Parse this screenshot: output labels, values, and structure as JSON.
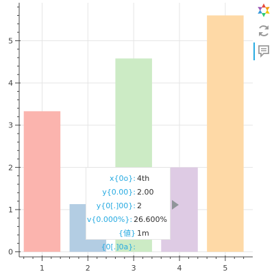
{
  "chart_data": {
    "type": "bar",
    "categories": [
      "1",
      "2",
      "3",
      "4",
      "5"
    ],
    "values": [
      3.33,
      1.13,
      4.58,
      2.0,
      5.6
    ],
    "colors": [
      "#fbb4ae",
      "#b3cde3",
      "#ccebc5",
      "#decbe4",
      "#fed9a6"
    ],
    "title": "",
    "xlabel": "",
    "ylabel": "",
    "xlim": [
      0.5,
      5.6
    ],
    "ylim": [
      -0.12,
      5.9
    ],
    "yticks": [
      0,
      1,
      2,
      3,
      4,
      5
    ],
    "grid": true
  },
  "tooltip": {
    "rows": [
      {
        "key": "x{0o}:",
        "value": "4th"
      },
      {
        "key": "y{0.00}:",
        "value": "2.00"
      },
      {
        "key": "y{0[.]00}:",
        "value": "2"
      },
      {
        "key": "v{0.000%}:",
        "value": "26.600%"
      },
      {
        "key": "{値}{0[.]0a}:",
        "value": "1m"
      }
    ]
  },
  "toolbar": {
    "tools": [
      "bokeh-logo-icon",
      "reset-icon",
      "hover-icon"
    ],
    "accent": "#26aae1"
  }
}
